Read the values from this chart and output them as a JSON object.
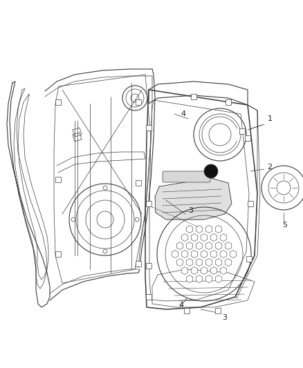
{
  "bg_color": "#ffffff",
  "line_color": "#3a3a3a",
  "figsize": [
    4.38,
    5.33
  ],
  "dpi": 100,
  "thin": 0.5,
  "med": 0.8,
  "thick": 1.1,
  "label_fontsize": 8,
  "label_color": "#222222"
}
